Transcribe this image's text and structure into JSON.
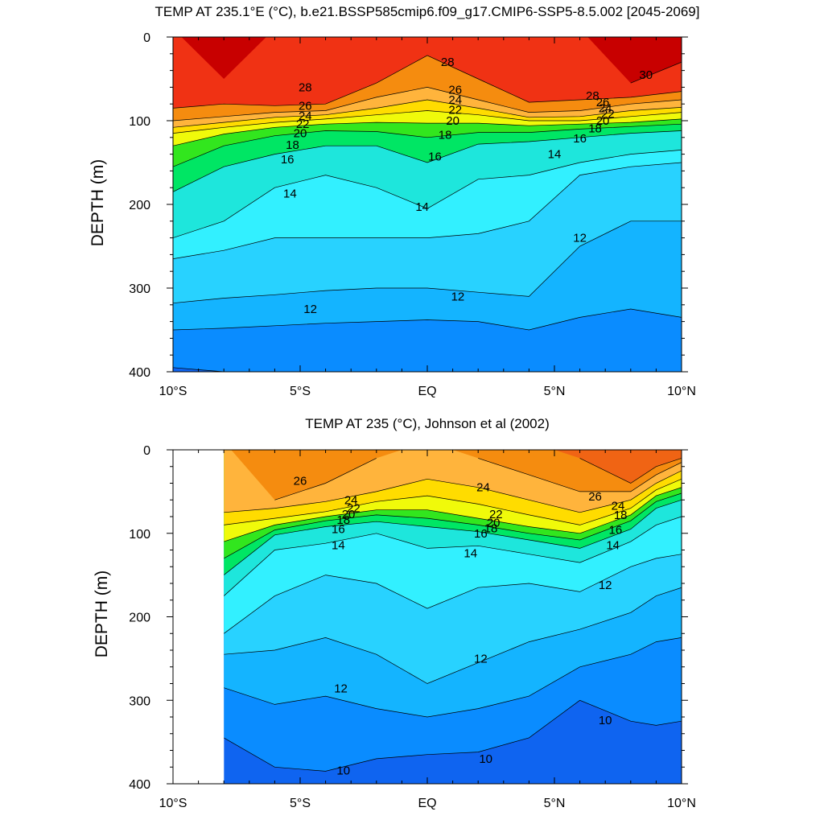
{
  "chart_data": [
    {
      "type": "heatmap",
      "subtype": "filled-contour",
      "title": "TEMP AT 235.1°E (°C), b.e21.BSSP585cmip6.f09_g17.CMIP6-SSP5-8.5.002 [2045-2069]",
      "ylabel": "DEPTH (m)",
      "xlabel": "",
      "xlim": [
        -10,
        10
      ],
      "ylim": [
        400,
        0
      ],
      "y_reversed": true,
      "x_ticks": [
        {
          "value": -10,
          "label": "10°S"
        },
        {
          "value": -5,
          "label": "5°S"
        },
        {
          "value": 0,
          "label": "EQ"
        },
        {
          "value": 5,
          "label": "5°N"
        },
        {
          "value": 10,
          "label": "10°N"
        }
      ],
      "y_ticks": [
        {
          "value": 0,
          "label": "0"
        },
        {
          "value": 100,
          "label": "100"
        },
        {
          "value": 200,
          "label": "200"
        },
        {
          "value": 300,
          "label": "300"
        },
        {
          "value": 400,
          "label": "400"
        }
      ],
      "data_x_range": [
        -10,
        10
      ],
      "contour_levels": [
        9,
        10,
        11,
        12,
        13,
        14,
        15,
        16,
        17,
        18,
        19,
        20,
        21,
        22,
        23,
        24,
        25,
        26,
        27,
        28,
        29,
        30
      ],
      "x": [
        -10,
        -8,
        -6,
        -4,
        -2,
        0,
        2,
        4,
        6,
        8,
        10
      ],
      "isotherm_depths": [
        {
          "level": 30,
          "depth": [
            null,
            50,
            null,
            null,
            null,
            null,
            null,
            null,
            null,
            55,
            30
          ]
        },
        {
          "level": 28,
          "depth": [
            85,
            80,
            82,
            80,
            55,
            22,
            50,
            78,
            75,
            72,
            65
          ]
        },
        {
          "level": 26,
          "depth": [
            100,
            95,
            90,
            88,
            72,
            60,
            75,
            90,
            88,
            80,
            75
          ]
        },
        {
          "level": 24,
          "depth": [
            108,
            102,
            96,
            93,
            85,
            75,
            85,
            96,
            95,
            88,
            84
          ]
        },
        {
          "level": 22,
          "depth": [
            115,
            108,
            102,
            98,
            93,
            88,
            93,
            100,
            100,
            95,
            90
          ]
        },
        {
          "level": 20,
          "depth": [
            130,
            116,
            108,
            104,
            102,
            103,
            103,
            106,
            104,
            102,
            98
          ]
        },
        {
          "level": 18,
          "depth": [
            155,
            130,
            118,
            112,
            113,
            120,
            114,
            114,
            110,
            107,
            104
          ]
        },
        {
          "level": 16,
          "depth": [
            185,
            155,
            140,
            130,
            130,
            150,
            128,
            125,
            120,
            115,
            112
          ]
        },
        {
          "level": 14,
          "depth": [
            240,
            220,
            180,
            165,
            180,
            205,
            170,
            165,
            150,
            140,
            135
          ]
        },
        {
          "level": 13,
          "depth": [
            265,
            255,
            240,
            240,
            240,
            240,
            235,
            220,
            165,
            155,
            150
          ]
        },
        {
          "level": 12,
          "depth": [
            318,
            312,
            308,
            303,
            300,
            300,
            305,
            310,
            250,
            220,
            220
          ]
        },
        {
          "level": 11,
          "depth": [
            350,
            348,
            345,
            342,
            340,
            338,
            340,
            350,
            335,
            325,
            335
          ]
        },
        {
          "level": 10,
          "depth": [
            395,
            410,
            420,
            420,
            420,
            420,
            420,
            420,
            420,
            420,
            420
          ]
        }
      ],
      "contour_labels": [
        {
          "text": "30",
          "x": 8.6,
          "y": 45
        },
        {
          "text": "28",
          "x": -4.8,
          "y": 60
        },
        {
          "text": "28",
          "x": 0.8,
          "y": 30
        },
        {
          "text": "28",
          "x": 6.5,
          "y": 70
        },
        {
          "text": "26",
          "x": -4.8,
          "y": 82
        },
        {
          "text": "26",
          "x": 1.1,
          "y": 63
        },
        {
          "text": "26",
          "x": 6.9,
          "y": 78
        },
        {
          "text": "24",
          "x": -4.8,
          "y": 94
        },
        {
          "text": "24",
          "x": 1.1,
          "y": 75
        },
        {
          "text": "24",
          "x": 7.0,
          "y": 85
        },
        {
          "text": "22",
          "x": -4.9,
          "y": 104
        },
        {
          "text": "22",
          "x": 1.1,
          "y": 87
        },
        {
          "text": "22",
          "x": 7.1,
          "y": 92
        },
        {
          "text": "20",
          "x": -5.0,
          "y": 115
        },
        {
          "text": "20",
          "x": 1.0,
          "y": 100
        },
        {
          "text": "20",
          "x": 6.9,
          "y": 100
        },
        {
          "text": "18",
          "x": -5.3,
          "y": 129
        },
        {
          "text": "18",
          "x": 0.7,
          "y": 117
        },
        {
          "text": "18",
          "x": 6.6,
          "y": 109
        },
        {
          "text": "16",
          "x": -5.5,
          "y": 146
        },
        {
          "text": "16",
          "x": 0.3,
          "y": 143
        },
        {
          "text": "16",
          "x": 6.0,
          "y": 121
        },
        {
          "text": "14",
          "x": -5.4,
          "y": 187
        },
        {
          "text": "14",
          "x": -0.2,
          "y": 203
        },
        {
          "text": "14",
          "x": 5.0,
          "y": 140
        },
        {
          "text": "12",
          "x": -4.6,
          "y": 325
        },
        {
          "text": "12",
          "x": 1.2,
          "y": 310
        },
        {
          "text": "12",
          "x": 6.0,
          "y": 240
        }
      ]
    },
    {
      "type": "heatmap",
      "subtype": "filled-contour",
      "title": "TEMP AT 235 (°C), Johnson et al (2002)",
      "ylabel": "DEPTH (m)",
      "xlabel": "",
      "xlim": [
        -10,
        10
      ],
      "ylim": [
        400,
        0
      ],
      "y_reversed": true,
      "x_ticks": [
        {
          "value": -10,
          "label": "10°S"
        },
        {
          "value": -5,
          "label": "5°S"
        },
        {
          "value": 0,
          "label": "EQ"
        },
        {
          "value": 5,
          "label": "5°N"
        },
        {
          "value": 10,
          "label": "10°N"
        }
      ],
      "y_ticks": [
        {
          "value": 0,
          "label": "0"
        },
        {
          "value": 100,
          "label": "100"
        },
        {
          "value": 200,
          "label": "200"
        },
        {
          "value": 300,
          "label": "300"
        },
        {
          "value": 400,
          "label": "400"
        }
      ],
      "data_x_range": [
        -8,
        10
      ],
      "contour_levels": [
        9,
        10,
        11,
        12,
        13,
        14,
        15,
        16,
        17,
        18,
        19,
        20,
        21,
        22,
        23,
        24,
        25,
        26,
        27,
        28
      ],
      "x": [
        -8,
        -6,
        -4,
        -2,
        0,
        2,
        4,
        6,
        8,
        9,
        10
      ],
      "isotherm_depths": [
        {
          "level": 27,
          "depth": [
            null,
            null,
            null,
            null,
            null,
            null,
            null,
            10,
            40,
            20,
            10
          ]
        },
        {
          "level": 26,
          "depth": [
            null,
            60,
            40,
            10,
            null,
            10,
            30,
            50,
            50,
            30,
            15
          ]
        },
        {
          "level": 24,
          "depth": [
            75,
            70,
            62,
            50,
            35,
            45,
            60,
            75,
            60,
            40,
            25
          ]
        },
        {
          "level": 22,
          "depth": [
            90,
            82,
            74,
            62,
            55,
            65,
            78,
            90,
            70,
            48,
            35
          ]
        },
        {
          "level": 20,
          "depth": [
            110,
            90,
            80,
            72,
            72,
            82,
            92,
            100,
            78,
            55,
            45
          ]
        },
        {
          "level": 18,
          "depth": [
            130,
            96,
            85,
            78,
            82,
            90,
            100,
            108,
            85,
            62,
            52
          ]
        },
        {
          "level": 16,
          "depth": [
            150,
            102,
            92,
            86,
            92,
            98,
            108,
            118,
            95,
            70,
            60
          ]
        },
        {
          "level": 14,
          "depth": [
            175,
            120,
            112,
            100,
            118,
            115,
            125,
            135,
            110,
            90,
            80
          ]
        },
        {
          "level": 13,
          "depth": [
            220,
            175,
            150,
            160,
            190,
            165,
            160,
            170,
            140,
            130,
            125
          ]
        },
        {
          "level": 12,
          "depth": [
            245,
            240,
            225,
            245,
            280,
            255,
            230,
            215,
            195,
            175,
            165
          ]
        },
        {
          "level": 11,
          "depth": [
            285,
            305,
            295,
            310,
            320,
            310,
            295,
            260,
            245,
            230,
            225
          ]
        },
        {
          "level": 10,
          "depth": [
            345,
            380,
            385,
            370,
            365,
            362,
            345,
            300,
            325,
            330,
            325
          ]
        }
      ],
      "contour_labels": [
        {
          "text": "26",
          "x": -5.0,
          "y": 37
        },
        {
          "text": "26",
          "x": 6.6,
          "y": 56
        },
        {
          "text": "24",
          "x": -3.0,
          "y": 60
        },
        {
          "text": "24",
          "x": 2.2,
          "y": 45
        },
        {
          "text": "24",
          "x": 7.5,
          "y": 67
        },
        {
          "text": "22",
          "x": -2.9,
          "y": 70
        },
        {
          "text": "22",
          "x": 2.7,
          "y": 77
        },
        {
          "text": "20",
          "x": -3.1,
          "y": 77
        },
        {
          "text": "20",
          "x": 2.6,
          "y": 87
        },
        {
          "text": "18",
          "x": -3.3,
          "y": 84
        },
        {
          "text": "18",
          "x": 2.5,
          "y": 94
        },
        {
          "text": "18",
          "x": 7.6,
          "y": 78
        },
        {
          "text": "16",
          "x": -3.5,
          "y": 95
        },
        {
          "text": "16",
          "x": 2.1,
          "y": 100
        },
        {
          "text": "16",
          "x": 7.4,
          "y": 96
        },
        {
          "text": "14",
          "x": -3.5,
          "y": 114
        },
        {
          "text": "14",
          "x": 1.7,
          "y": 124
        },
        {
          "text": "14",
          "x": 7.3,
          "y": 114
        },
        {
          "text": "12",
          "x": -3.4,
          "y": 286
        },
        {
          "text": "12",
          "x": 2.1,
          "y": 250
        },
        {
          "text": "12",
          "x": 7.0,
          "y": 162
        },
        {
          "text": "10",
          "x": -3.3,
          "y": 384
        },
        {
          "text": "10",
          "x": 2.3,
          "y": 370
        },
        {
          "text": "10",
          "x": 7.0,
          "y": 324
        }
      ]
    }
  ],
  "colors": {
    "colormap_levels_low_to_high": [
      {
        "level_min": null,
        "level_max": 9,
        "color": "#0a3cdc"
      },
      {
        "level_min": 9,
        "level_max": 10,
        "color": "#0f64f0"
      },
      {
        "level_min": 10,
        "level_max": 11,
        "color": "#0a8cff"
      },
      {
        "level_min": 11,
        "level_max": 12,
        "color": "#14b4ff"
      },
      {
        "level_min": 12,
        "level_max": 13,
        "color": "#28d2ff"
      },
      {
        "level_min": 13,
        "level_max": 14,
        "color": "#32f0ff"
      },
      {
        "level_min": 14,
        "level_max": 15,
        "color": "#1ee6dc"
      },
      {
        "level_min": 15,
        "level_max": 16,
        "color": "#1ed7b4"
      },
      {
        "level_min": 16,
        "level_max": 17,
        "color": "#00e664"
      },
      {
        "level_min": 17,
        "level_max": 18,
        "color": "#14c814"
      },
      {
        "level_min": 18,
        "level_max": 19,
        "color": "#32e61e"
      },
      {
        "level_min": 19,
        "level_max": 20,
        "color": "#a0f014"
      },
      {
        "level_min": 20,
        "level_max": 21,
        "color": "#f0fa0a"
      },
      {
        "level_min": 21,
        "level_max": 22,
        "color": "#fff000"
      },
      {
        "level_min": 22,
        "level_max": 23,
        "color": "#ffdc00"
      },
      {
        "level_min": 23,
        "level_max": 24,
        "color": "#ffc828"
      },
      {
        "level_min": 24,
        "level_max": 25,
        "color": "#ffb43c"
      },
      {
        "level_min": 25,
        "level_max": 26,
        "color": "#ffa032"
      },
      {
        "level_min": 26,
        "level_max": 27,
        "color": "#f58c0f"
      },
      {
        "level_min": 27,
        "level_max": 28,
        "color": "#f06414"
      },
      {
        "level_min": 28,
        "level_max": 29,
        "color": "#f03214"
      },
      {
        "level_min": 29,
        "level_max": 30,
        "color": "#e61414"
      },
      {
        "level_min": 30,
        "level_max": null,
        "color": "#c80000"
      }
    ],
    "contour_line": "#000000"
  }
}
